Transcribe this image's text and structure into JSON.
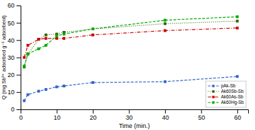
{
  "chart_data": {
    "type": "line",
    "xlabel": "Time (min.)",
    "ylabel": "Q (mg Sb³⁺ adsorbed g⁻¹ adsorbent)",
    "x": [
      1,
      2,
      5,
      7,
      10,
      12,
      20,
      40,
      60
    ],
    "series": [
      {
        "name": "pAk-Sb",
        "color": "#3366cc",
        "marker": "square",
        "line_style": "dashed",
        "values": [
          5.0,
          8.5,
          10.5,
          11.5,
          13.0,
          13.5,
          15.5,
          16.0,
          19.0
        ]
      },
      {
        "name": "Ak60Sb-Sb",
        "color": "#336600",
        "marker": "square",
        "line_style": "dotted",
        "values": [
          24.5,
          32.0,
          40.5,
          43.0,
          43.5,
          44.5,
          46.5,
          49.5,
          51.0
        ]
      },
      {
        "name": "Ak60As-Sb",
        "color": "#cc0000",
        "marker": "square",
        "line_style": "dashdot",
        "values": [
          30.0,
          37.0,
          40.5,
          41.0,
          41.0,
          41.0,
          43.0,
          45.5,
          47.0
        ]
      },
      {
        "name": "Ak60Hg-Sb",
        "color": "#00aa00",
        "marker": "square",
        "line_style": "dashed",
        "values": [
          25.0,
          32.0,
          35.0,
          37.0,
          42.5,
          43.5,
          46.5,
          51.5,
          53.5
        ]
      }
    ],
    "xlim": [
      0,
      63
    ],
    "ylim": [
      0,
      60
    ],
    "xticks": [
      0,
      10,
      20,
      30,
      40,
      50,
      60
    ],
    "yticks": [
      0,
      10,
      20,
      30,
      40,
      50,
      60
    ],
    "grid": false,
    "legend": "lower right"
  }
}
